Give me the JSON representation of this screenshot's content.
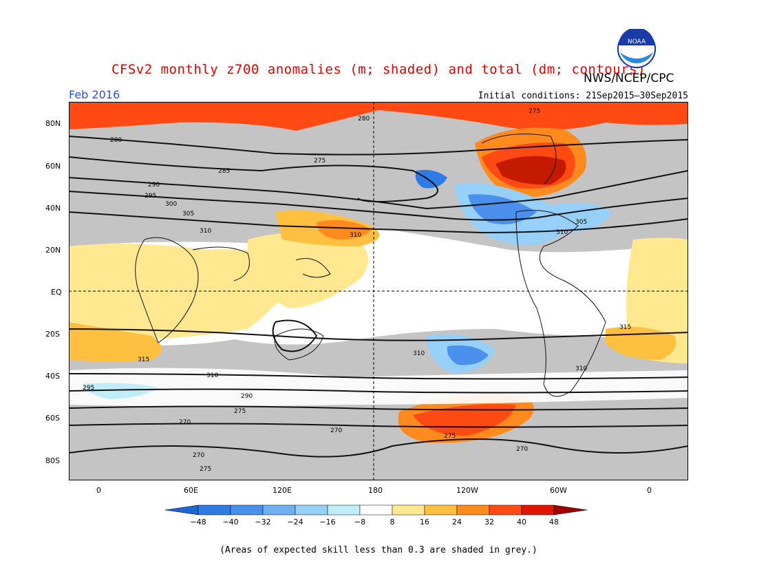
{
  "title": "CFSv2 monthly z700 anomalies (m; shaded) and total (dm; contours)",
  "agency": "NWS/NCEP/CPC",
  "logo_text": "NOAA",
  "period": "Feb 2016",
  "initial_conditions": "Initial conditions: 21Sep2015–30Sep2015",
  "footnote": "(Areas of expected skill less than 0.3 are shaded in grey.)",
  "axes": {
    "lat_labels": [
      "80N",
      "60N",
      "40N",
      "20N",
      "EQ",
      "20S",
      "40S",
      "60S",
      "80S"
    ],
    "lon_labels": [
      "0",
      "60E",
      "120E",
      "180",
      "120W",
      "60W",
      "0"
    ]
  },
  "colorbar": {
    "ticks": [
      "−48",
      "−40",
      "−32",
      "−24",
      "−16",
      "−8",
      "8",
      "16",
      "24",
      "32",
      "40",
      "48"
    ],
    "colors": [
      "#1e64d2",
      "#2e7ae6",
      "#4a90ec",
      "#6eb0f2",
      "#96d0f8",
      "#bfeef8",
      "#ffffff",
      "#ffe890",
      "#ffc040",
      "#ff8a1e",
      "#ff4a14",
      "#e01400",
      "#a00000"
    ]
  },
  "shading": {
    "grey": "#c4c4c4"
  },
  "contour_labels": [
    "275",
    "280",
    "285",
    "290",
    "295",
    "300",
    "305",
    "310",
    "315",
    "270"
  ]
}
